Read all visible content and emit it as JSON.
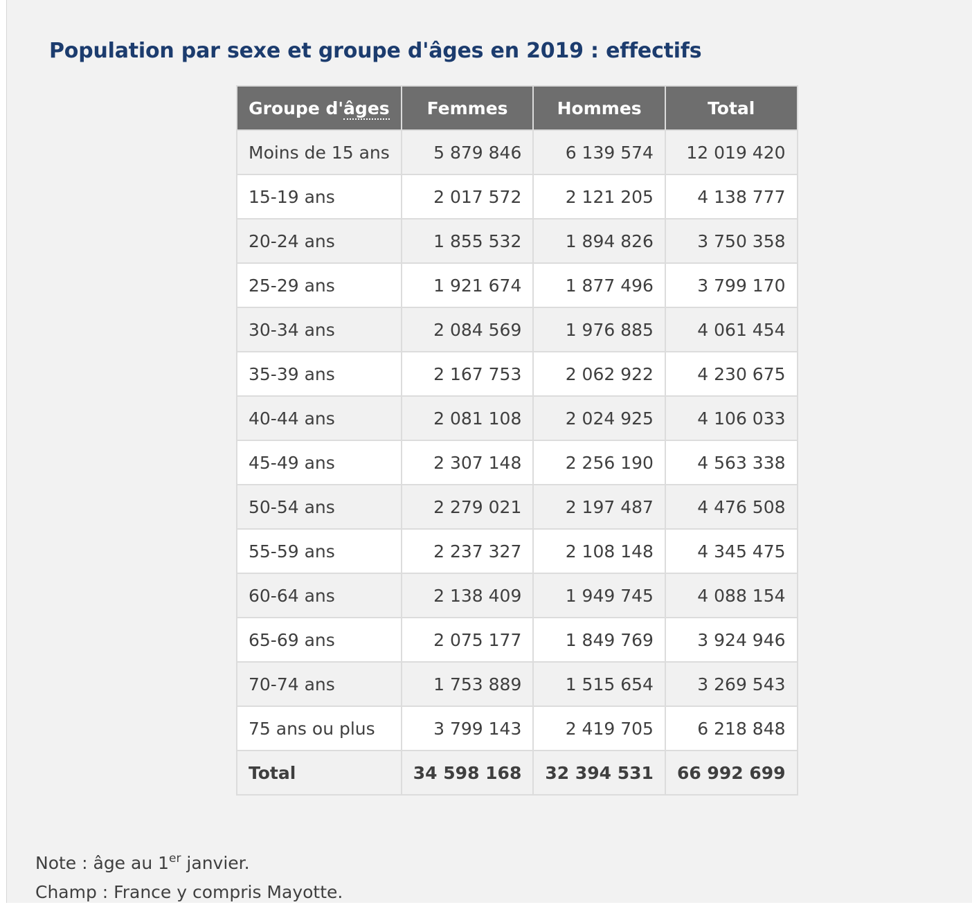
{
  "title": "Population par sexe et groupe d'âges en 2019 : effectifs",
  "table": {
    "headers": {
      "group_prefix": "Groupe d'",
      "group_abbr": "âges",
      "femmes": "Femmes",
      "hommes": "Hommes",
      "total": "Total"
    },
    "rows": [
      {
        "group": "Moins de 15 ans",
        "femmes": "5 879 846",
        "hommes": "6 139 574",
        "total": "12 019 420"
      },
      {
        "group": "15-19 ans",
        "femmes": "2 017 572",
        "hommes": "2 121 205",
        "total": "4 138 777"
      },
      {
        "group": "20-24 ans",
        "femmes": "1 855 532",
        "hommes": "1 894 826",
        "total": "3 750 358"
      },
      {
        "group": "25-29 ans",
        "femmes": "1 921 674",
        "hommes": "1 877 496",
        "total": "3 799 170"
      },
      {
        "group": "30-34 ans",
        "femmes": "2 084 569",
        "hommes": "1 976 885",
        "total": "4 061 454"
      },
      {
        "group": "35-39 ans",
        "femmes": "2 167 753",
        "hommes": "2 062 922",
        "total": "4 230 675"
      },
      {
        "group": "40-44 ans",
        "femmes": "2 081 108",
        "hommes": "2 024 925",
        "total": "4 106 033"
      },
      {
        "group": "45-49 ans",
        "femmes": "2 307 148",
        "hommes": "2 256 190",
        "total": "4 563 338"
      },
      {
        "group": "50-54 ans",
        "femmes": "2 279 021",
        "hommes": "2 197 487",
        "total": "4 476 508"
      },
      {
        "group": "55-59 ans",
        "femmes": "2 237 327",
        "hommes": "2 108 148",
        "total": "4 345 475"
      },
      {
        "group": "60-64 ans",
        "femmes": "2 138 409",
        "hommes": "1 949 745",
        "total": "4 088 154"
      },
      {
        "group": "65-69 ans",
        "femmes": "2 075 177",
        "hommes": "1 849 769",
        "total": "3 924 946"
      },
      {
        "group": "70-74 ans",
        "femmes": "1 753 889",
        "hommes": "1 515 654",
        "total": "3 269 543"
      },
      {
        "group": "75 ans ou plus",
        "femmes": "3 799 143",
        "hommes": "2 419 705",
        "total": "6 218 848"
      }
    ],
    "total_row": {
      "group": "Total",
      "femmes": "34 598 168",
      "hommes": "32 394 531",
      "total": "66 992 699"
    }
  },
  "notes": {
    "note_prefix": "Note : âge au 1",
    "note_sup": "er",
    "note_suffix": " janvier.",
    "champ": "Champ : France y compris Mayotte."
  }
}
